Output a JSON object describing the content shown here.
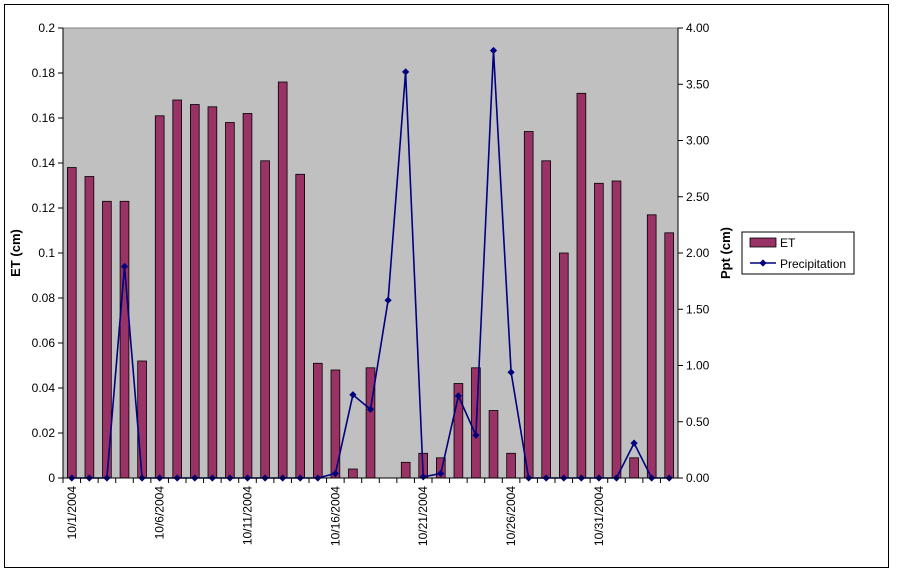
{
  "chart_data": {
    "type": "bar+line",
    "x": [
      "10/1/2004",
      "10/2/2004",
      "10/3/2004",
      "10/4/2004",
      "10/5/2004",
      "10/6/2004",
      "10/7/2004",
      "10/8/2004",
      "10/9/2004",
      "10/10/2004",
      "10/11/2004",
      "10/12/2004",
      "10/13/2004",
      "10/14/2004",
      "10/15/2004",
      "10/16/2004",
      "10/17/2004",
      "10/18/2004",
      "10/19/2004",
      "10/20/2004",
      "10/21/2004",
      "10/22/2004",
      "10/23/2004",
      "10/24/2004",
      "10/25/2004",
      "10/26/2004",
      "10/27/2004",
      "10/28/2004",
      "10/29/2004",
      "10/30/2004",
      "10/31/2004",
      "11/1/2004",
      "11/2/2004",
      "11/3/2004",
      "11/4/2004"
    ],
    "x_tick_labels": [
      "10/1/2004",
      "10/6/2004",
      "10/11/2004",
      "10/16/2004",
      "10/21/2004",
      "10/26/2004",
      "10/31/2004"
    ],
    "series": [
      {
        "name": "ET",
        "type": "bar",
        "axis": "left",
        "color": "#993366",
        "values": [
          0.138,
          0.134,
          0.123,
          0.123,
          0.052,
          0.161,
          0.168,
          0.166,
          0.165,
          0.158,
          0.162,
          0.141,
          0.176,
          0.135,
          0.051,
          0.048,
          0.004,
          0.049,
          0.0,
          0.007,
          0.011,
          0.009,
          0.042,
          0.049,
          0.03,
          0.011,
          0.154,
          0.141,
          0.1,
          0.171,
          0.131,
          0.132,
          0.009,
          0.117,
          0.109
        ]
      },
      {
        "name": "Precipitation",
        "type": "line",
        "axis": "right",
        "color": "#000080",
        "values": [
          0,
          0,
          0,
          1.88,
          0,
          0,
          0,
          0,
          0,
          0,
          0,
          0,
          0,
          0,
          0,
          0.04,
          0.74,
          0.61,
          1.58,
          3.61,
          0.01,
          0.04,
          0.73,
          0.38,
          3.8,
          0.94,
          0,
          0,
          0,
          0,
          0,
          0,
          0.31,
          0,
          0
        ]
      }
    ],
    "ylabel": "ET (cm)",
    "y2label": "Ppt (cm)",
    "ylim": [
      0,
      0.2
    ],
    "y2lim": [
      0,
      4.0
    ],
    "y_ticks": [
      "0",
      "0.02",
      "0.04",
      "0.06",
      "0.08",
      "0.1",
      "0.12",
      "0.14",
      "0.16",
      "0.18",
      "0.2"
    ],
    "y2_ticks": [
      "0.00",
      "0.50",
      "1.00",
      "1.50",
      "2.00",
      "2.50",
      "3.00",
      "3.50",
      "4.00"
    ],
    "legend_position": "right",
    "plot_background": "#c0c0c0",
    "grid": false
  }
}
